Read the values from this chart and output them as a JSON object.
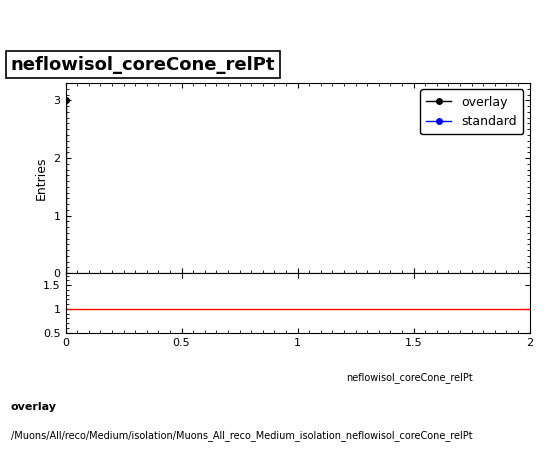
{
  "title": "neflowisol_coreCone_relPt",
  "ylabel_main": "Entries",
  "xlabel": "neflowisol_coreCone_relPt",
  "xlim": [
    0,
    2
  ],
  "ylim_main": [
    0,
    3.3
  ],
  "ylim_ratio": [
    0.5,
    1.75
  ],
  "yticks_main": [
    0,
    1,
    2,
    3
  ],
  "yticks_ratio": [
    0.5,
    1,
    1.5
  ],
  "ratio_line_y": 1.0,
  "ratio_xlim": [
    0,
    2
  ],
  "overlay_color": "#000000",
  "standard_color": "#0000ff",
  "ratio_color": "#ff0000",
  "legend_overlay": "overlay",
  "legend_standard": "standard",
  "footer_line1": "overlay",
  "footer_line2": "/Muons/All/reco/Medium/isolation/Muons_All_reco_Medium_isolation_neflowisol_coreCone_relPt",
  "title_fontsize": 13,
  "axis_fontsize": 9,
  "footer_fontsize": 8,
  "legend_fontsize": 9
}
